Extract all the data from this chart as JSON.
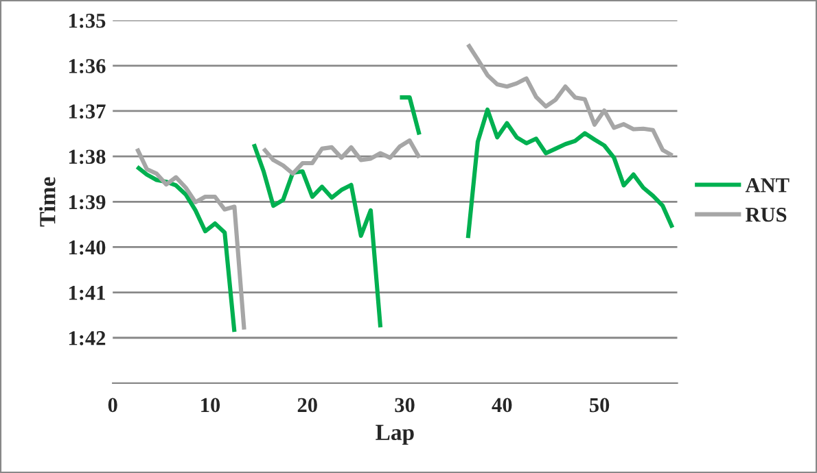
{
  "chart_data": {
    "type": "line",
    "xlabel": "Lap",
    "ylabel": "Time",
    "xlim": [
      0,
      58
    ],
    "xticks": [
      0,
      10,
      20,
      30,
      40,
      50
    ],
    "ylim": [
      103,
      95
    ],
    "yticks": [
      {
        "value": 95,
        "label": "1:35"
      },
      {
        "value": 96,
        "label": "1:36"
      },
      {
        "value": 97,
        "label": "1:37"
      },
      {
        "value": 98,
        "label": "1:38"
      },
      {
        "value": 99,
        "label": "1:39"
      },
      {
        "value": 100,
        "label": "1:40"
      },
      {
        "value": 101,
        "label": "1:41"
      },
      {
        "value": 102,
        "label": "1:42"
      }
    ],
    "grid": "y",
    "legend": "right",
    "marker": "none",
    "line_style": "solid",
    "series": [
      {
        "name": "ANT",
        "color": "#00b050",
        "x": [
          2.5,
          3.5,
          4.5,
          5.5,
          6.5,
          7.5,
          8.5,
          9.5,
          10.5,
          11.5,
          12.5,
          13.5,
          14.5,
          15.5,
          16.5,
          17.5,
          18.5,
          19.5,
          20.5,
          21.5,
          22.5,
          23.5,
          24.5,
          25.5,
          26.5,
          27.5,
          28.5,
          29.5,
          30.5,
          31.5,
          32.5,
          33.5,
          34.5,
          35.5,
          36.5,
          37.5,
          38.5,
          39.5,
          40.5,
          41.5,
          42.5,
          43.5,
          44.5,
          45.5,
          46.5,
          47.5,
          48.5,
          49.5,
          50.5,
          51.5,
          52.5,
          53.5,
          54.5,
          55.5,
          56.5,
          57.5
        ],
        "values": [
          98.23,
          98.4,
          98.52,
          98.56,
          98.64,
          98.84,
          99.19,
          99.65,
          99.48,
          99.68,
          101.87,
          null,
          97.73,
          98.33,
          99.09,
          98.96,
          98.36,
          98.33,
          98.89,
          98.67,
          98.91,
          98.74,
          98.63,
          99.75,
          99.19,
          101.77,
          null,
          96.7,
          96.7,
          97.52,
          null,
          null,
          null,
          null,
          99.8,
          97.68,
          96.97,
          97.58,
          97.27,
          97.58,
          97.71,
          97.61,
          97.93,
          97.83,
          97.73,
          97.66,
          97.49,
          97.63,
          97.76,
          98.03,
          98.64,
          98.4,
          98.69,
          98.87,
          99.09,
          99.57
        ]
      },
      {
        "name": "RUS",
        "color": "#a6a6a6",
        "x": [
          2.5,
          3.5,
          4.5,
          5.5,
          6.5,
          7.5,
          8.5,
          9.5,
          10.5,
          11.5,
          12.5,
          13.5,
          14.5,
          15.5,
          16.5,
          17.5,
          18.5,
          19.5,
          20.5,
          21.5,
          22.5,
          23.5,
          24.5,
          25.5,
          26.5,
          27.5,
          28.5,
          29.5,
          30.5,
          31.5,
          32.5,
          33.5,
          34.5,
          35.5,
          36.5,
          37.5,
          38.5,
          39.5,
          40.5,
          41.5,
          42.5,
          43.5,
          44.5,
          45.5,
          46.5,
          47.5,
          48.5,
          49.5,
          50.5,
          51.5,
          52.5,
          53.5,
          54.5,
          55.5,
          56.5,
          57.5
        ],
        "values": [
          97.83,
          98.28,
          98.38,
          98.62,
          98.46,
          98.69,
          99.01,
          98.89,
          98.89,
          99.17,
          99.11,
          101.82,
          null,
          97.83,
          98.08,
          98.2,
          98.38,
          98.15,
          98.15,
          97.83,
          97.8,
          98.03,
          97.8,
          98.08,
          98.05,
          97.93,
          98.03,
          97.78,
          97.65,
          98.03,
          null,
          null,
          null,
          null,
          95.53,
          95.86,
          96.21,
          96.41,
          96.46,
          96.39,
          96.28,
          96.69,
          96.9,
          96.75,
          96.46,
          96.7,
          96.74,
          97.3,
          96.99,
          97.37,
          97.29,
          97.4,
          97.39,
          97.42,
          97.86,
          97.98
        ]
      }
    ]
  }
}
